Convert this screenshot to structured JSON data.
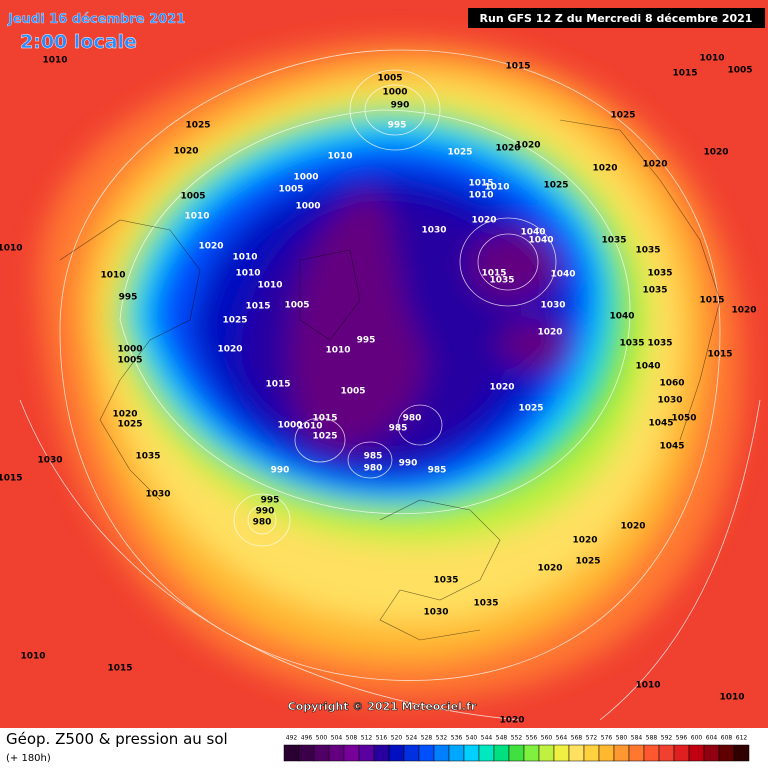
{
  "header": {
    "date": "Jeudi 16 décembre 2021",
    "time": "2:00 locale",
    "run": "Run GFS 12 Z du Mercredi 8 décembre 2021"
  },
  "footer": {
    "title": "Géop. Z500 & pression au sol",
    "lead": "(+ 180h)",
    "copyright": "Copyright © 2021 Meteociel.fr"
  },
  "colorbar": {
    "ticks": [
      492,
      496,
      500,
      504,
      508,
      512,
      516,
      520,
      524,
      528,
      532,
      536,
      540,
      544,
      548,
      552,
      556,
      560,
      564,
      568,
      572,
      576,
      580,
      584,
      588,
      592,
      596,
      600,
      604,
      608,
      612
    ],
    "colors": [
      "#2a0030",
      "#3c004a",
      "#500064",
      "#640080",
      "#78009a",
      "#5a00a0",
      "#2800a0",
      "#0010c0",
      "#0030e0",
      "#0050ff",
      "#0080ff",
      "#00a8ff",
      "#00d0ff",
      "#00e8c0",
      "#00e080",
      "#40e040",
      "#80f040",
      "#c0f040",
      "#f0f040",
      "#ffe060",
      "#ffd040",
      "#ffb830",
      "#ff9830",
      "#ff7830",
      "#ff5830",
      "#f04030",
      "#e02020",
      "#c00010",
      "#900010",
      "#600000",
      "#300000"
    ]
  },
  "pressure_labels": [
    1005,
    1000,
    990,
    995,
    1015,
    1015,
    1010,
    1005,
    1010,
    1025,
    1020,
    1010,
    1025,
    1020,
    1020,
    1025,
    1020,
    1020,
    1020,
    1000,
    1005,
    1005,
    1010,
    1000,
    1015,
    1010,
    1025,
    1010,
    1020,
    1030,
    1040,
    1040,
    1035,
    1035,
    1020,
    1010,
    1010,
    1010,
    1010,
    1015,
    1035,
    1040,
    1035,
    1035,
    1015,
    1020,
    995,
    1015,
    1005,
    1025,
    1030,
    1040,
    1020,
    995,
    1010,
    1020,
    1000,
    1005,
    1035,
    1035,
    1015,
    1040,
    1015,
    1005,
    1020,
    1025,
    1060,
    1030,
    1050,
    1020,
    1025,
    980,
    985,
    1015,
    1000,
    1010,
    1025,
    1045,
    1045,
    1035,
    1030,
    990,
    985,
    980,
    990,
    985,
    1015,
    1030,
    995,
    990,
    980,
    1020,
    1020,
    1025,
    1020,
    1035,
    1030,
    1035,
    1010,
    1015,
    1010,
    1010,
    1020,
    1010
  ]
}
